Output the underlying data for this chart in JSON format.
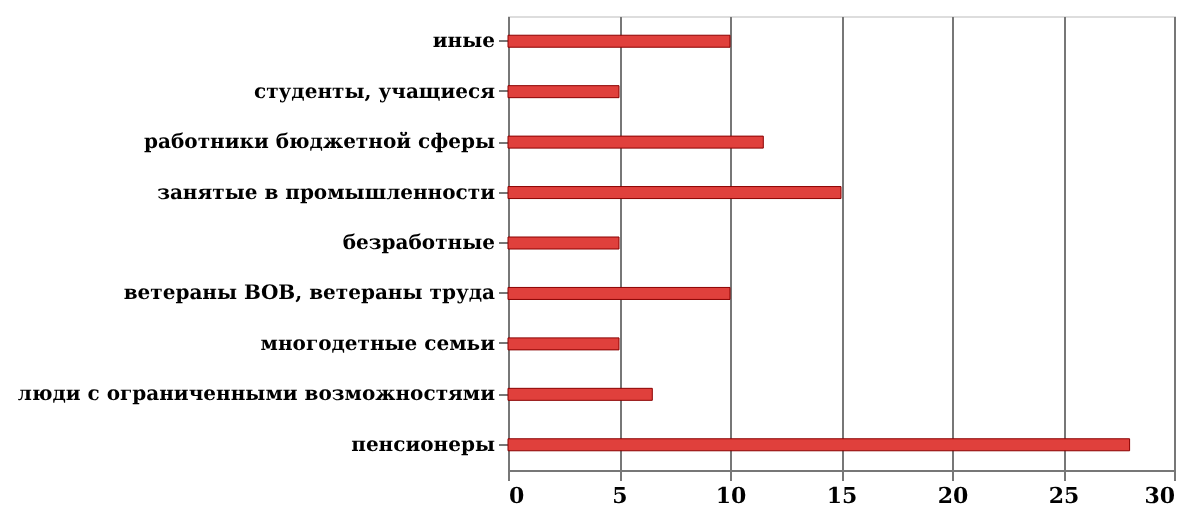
{
  "chart_data": {
    "type": "bar",
    "orientation": "horizontal",
    "categories": [
      "иные",
      "студенты, учащиеся",
      "работники бюджетной сферы",
      "занятые в промышленности",
      "безработные",
      "ветераны ВОВ, ветераны труда",
      "многодетные семьи",
      "люди с ограниченными возможностями",
      "пенсионеры"
    ],
    "values": [
      10,
      5,
      11.5,
      15,
      5,
      10,
      5,
      6.5,
      28
    ],
    "color": "#e0403c",
    "xlim": [
      0,
      30
    ],
    "xticks": [
      0,
      5,
      10,
      15,
      20,
      25,
      30
    ],
    "grid": "x"
  }
}
